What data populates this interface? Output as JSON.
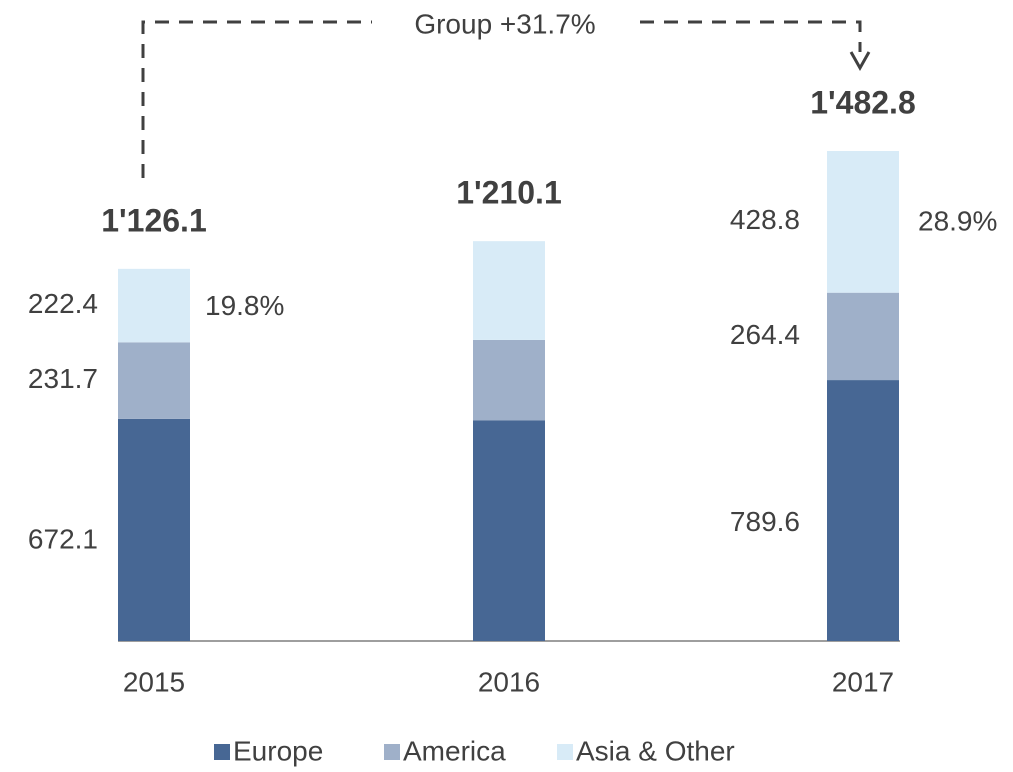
{
  "chart_data": {
    "type": "bar",
    "stacked": true,
    "categories": [
      "2015",
      "2016",
      "2017"
    ],
    "series": [
      {
        "name": "Europe",
        "color": "#476794",
        "values": [
          672.1,
          668,
          789.6
        ],
        "value_labels": [
          "672.1",
          null,
          "789.6"
        ]
      },
      {
        "name": "America",
        "color": "#9fb0c9",
        "values": [
          231.7,
          243,
          264.4
        ],
        "value_labels": [
          "231.7",
          null,
          "264.4"
        ]
      },
      {
        "name": "Asia & Other",
        "color": "#d8ebf7",
        "values": [
          222.4,
          299,
          428.8
        ],
        "value_labels": [
          "222.4",
          null,
          "428.8"
        ]
      }
    ],
    "totals": [
      1126.1,
      1210.1,
      1482.8
    ],
    "total_labels": [
      "1'126.1",
      "1'210.1",
      "1'482.8"
    ],
    "share_labels": [
      "19.8%",
      null,
      "28.9%"
    ],
    "annotation": "Group +31.7%"
  }
}
